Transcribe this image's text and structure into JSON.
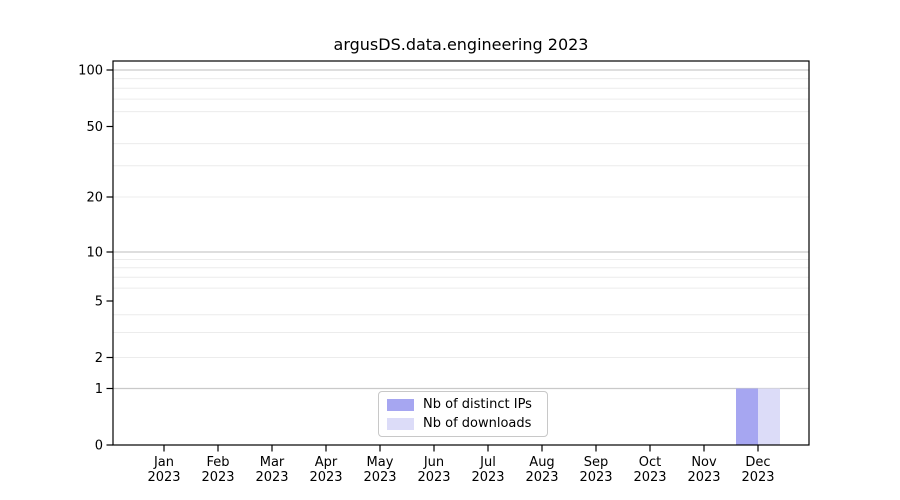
{
  "title": "argusDS.data.engineering 2023",
  "chart_data": {
    "type": "bar",
    "title": "argusDS.data.engineering 2023",
    "categories": [
      {
        "month": "Jan",
        "year": "2023"
      },
      {
        "month": "Feb",
        "year": "2023"
      },
      {
        "month": "Mar",
        "year": "2023"
      },
      {
        "month": "Apr",
        "year": "2023"
      },
      {
        "month": "May",
        "year": "2023"
      },
      {
        "month": "Jun",
        "year": "2023"
      },
      {
        "month": "Jul",
        "year": "2023"
      },
      {
        "month": "Aug",
        "year": "2023"
      },
      {
        "month": "Sep",
        "year": "2023"
      },
      {
        "month": "Oct",
        "year": "2023"
      },
      {
        "month": "Nov",
        "year": "2023"
      },
      {
        "month": "Dec",
        "year": "2023"
      }
    ],
    "series": [
      {
        "name": "Nb of distinct IPs",
        "color": "#a6a6f1",
        "values": [
          0,
          0,
          0,
          0,
          0,
          0,
          0,
          0,
          0,
          0,
          0,
          1
        ]
      },
      {
        "name": "Nb of downloads",
        "color": "#dcdcf8",
        "values": [
          0,
          0,
          0,
          0,
          0,
          0,
          0,
          0,
          0,
          0,
          0,
          1
        ]
      }
    ],
    "yscale": "symlog",
    "ylim": [
      0,
      112
    ],
    "yticks": [
      0,
      1,
      2,
      5,
      10,
      20,
      50,
      100
    ],
    "grid": {
      "major_values": [
        1,
        10,
        100
      ],
      "minor_values": [
        2,
        3,
        4,
        6,
        7,
        8,
        9,
        20,
        30,
        40,
        60,
        70,
        80,
        90
      ],
      "major_color": "#c9c9c9",
      "minor_color": "#ececec"
    },
    "legend": {
      "location": "lower center"
    },
    "xlabel": "",
    "ylabel": ""
  },
  "colors": {
    "background": "#ffffff",
    "spine": "#000000",
    "text": "#000000"
  }
}
